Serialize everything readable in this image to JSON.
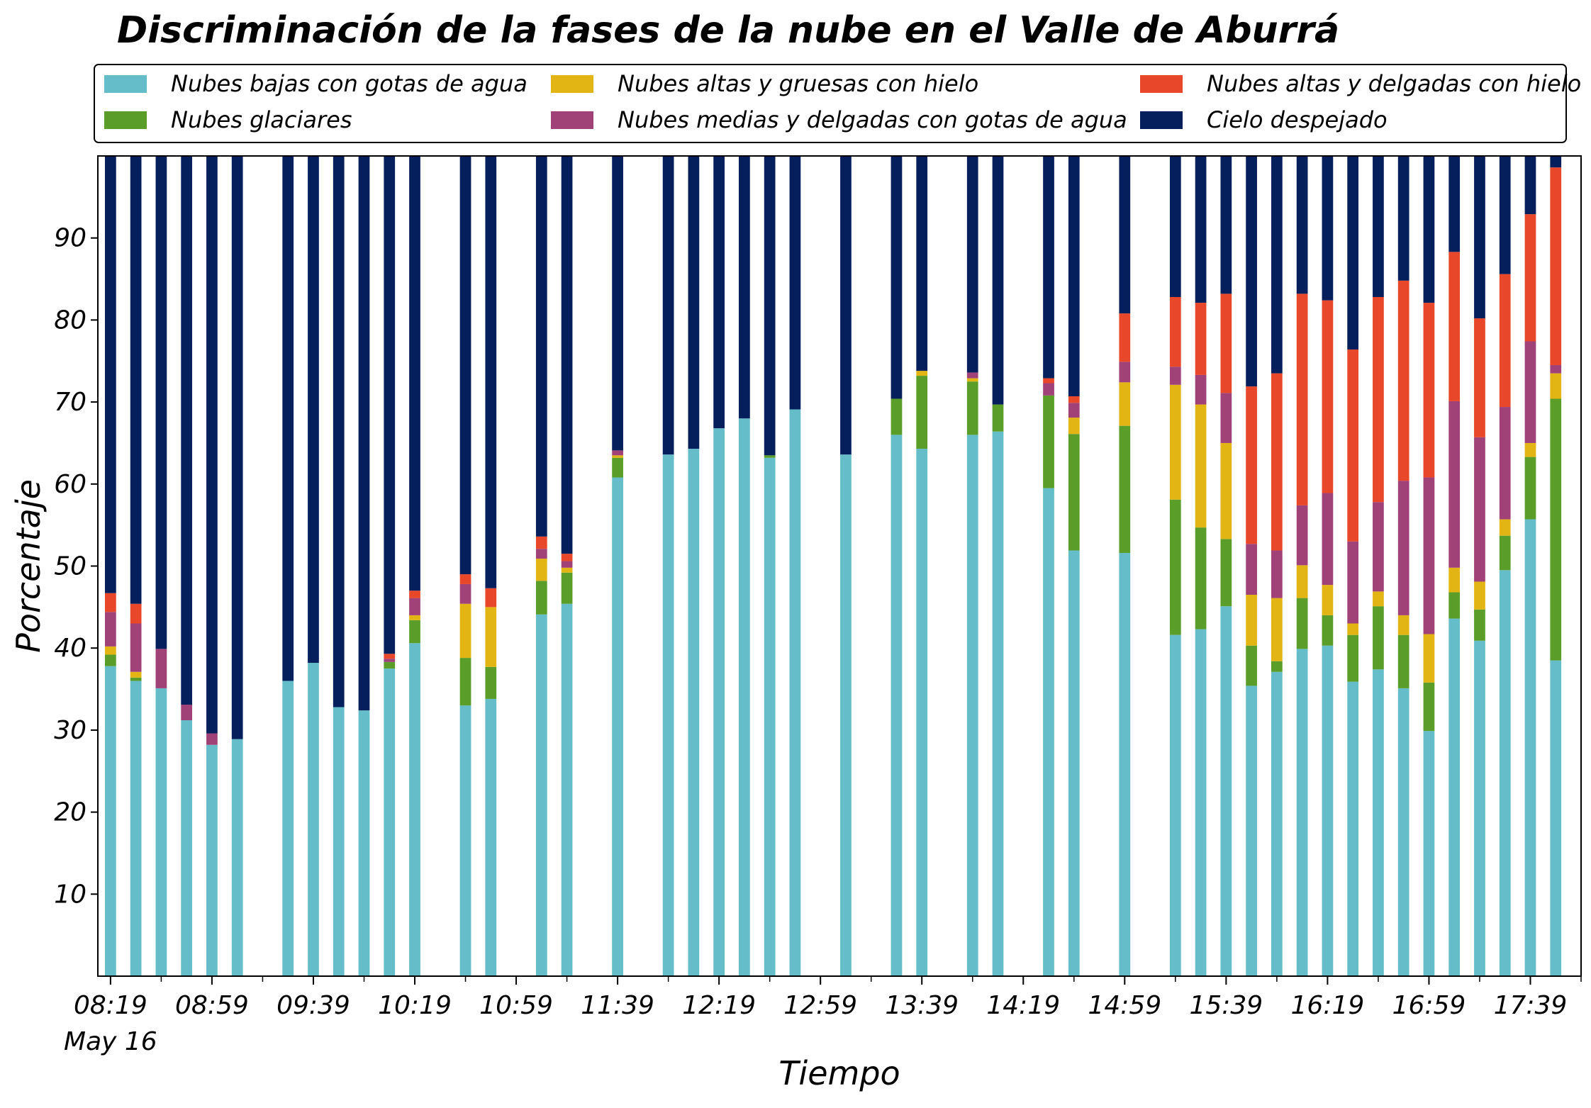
{
  "chart_data": {
    "type": "bar",
    "stacked": true,
    "title": "Discriminación de la fases de la nube en el Valle de Aburrá",
    "xlabel": "Tiempo",
    "ylabel": "Porcentaje",
    "ylim": [
      0,
      100
    ],
    "yticks": [
      10,
      20,
      30,
      40,
      50,
      60,
      70,
      80,
      90
    ],
    "xlim": [
      0,
      117
    ],
    "x_unit_minutes": 5,
    "x_start_time": "08:19",
    "xtick_labels": [
      "08:19",
      "08:59",
      "09:39",
      "10:19",
      "10:59",
      "11:39",
      "12:19",
      "12:59",
      "13:39",
      "14:19",
      "14:59",
      "15:39",
      "16:19",
      "16:59",
      "17:39"
    ],
    "xtick_sublabel": "May 16",
    "legend_position": "top",
    "grid": false,
    "x": [
      "08:19",
      "08:29",
      "08:39",
      "08:49",
      "08:59",
      "09:09",
      "09:29",
      "09:39",
      "09:49",
      "09:59",
      "10:09",
      "10:19",
      "10:39",
      "10:49",
      "11:09",
      "11:19",
      "11:39",
      "11:59",
      "12:09",
      "12:19",
      "12:29",
      "12:39",
      "12:49",
      "13:09",
      "13:29",
      "13:39",
      "13:59",
      "14:09",
      "14:29",
      "14:39",
      "14:59",
      "15:19",
      "15:29",
      "15:39",
      "15:49",
      "15:59",
      "16:09",
      "16:19",
      "16:29",
      "16:39",
      "16:49",
      "16:59",
      "17:09",
      "17:19",
      "17:29",
      "17:39",
      "17:49"
    ],
    "series": [
      {
        "name": "Nubes bajas con gotas de agua",
        "color": "#64BDC9",
        "values": [
          37.8,
          36,
          35.1,
          31.2,
          28.2,
          28.9,
          36,
          38.2,
          32.8,
          32.4,
          37.5,
          40.6,
          33,
          33.8,
          44.1,
          45.4,
          60.8,
          63.6,
          64.3,
          66.8,
          68,
          63.2,
          69.1,
          63.6,
          66,
          64.3,
          66,
          66.4,
          59.5,
          51.9,
          51.6,
          41.6,
          42.3,
          45.1,
          35.4,
          37.1,
          39.9,
          40.3,
          35.9,
          37.4,
          35.1,
          29.9,
          43.6,
          40.9,
          49.5,
          55.7,
          38.5
        ]
      },
      {
        "name": "Nubes glaciares",
        "color": "#5A9E29",
        "values": [
          1.4,
          0.4,
          0,
          0,
          0,
          0,
          0,
          0,
          0,
          0,
          0.8,
          2.8,
          5.8,
          3.9,
          4.1,
          3.8,
          2.4,
          0,
          0,
          0,
          0,
          0.3,
          0,
          0,
          4.4,
          8.9,
          6.5,
          3.3,
          11.3,
          14.2,
          15.5,
          16.5,
          12.4,
          8.2,
          4.9,
          1.3,
          6.2,
          3.7,
          5.7,
          7.7,
          6.5,
          5.9,
          3.2,
          3.8,
          4.2,
          7.6,
          31.9
        ]
      },
      {
        "name": "Nubes altas y gruesas con hielo",
        "color": "#E3B514",
        "values": [
          1,
          0.7,
          0,
          0,
          0,
          0,
          0,
          0,
          0,
          0,
          0,
          0.6,
          6.6,
          7.3,
          2.7,
          0.6,
          0.3,
          0,
          0,
          0,
          0,
          0,
          0,
          0,
          0,
          0.6,
          0.4,
          0,
          0,
          2,
          5.3,
          14,
          15,
          11.7,
          6.2,
          7.7,
          4,
          3.7,
          1.4,
          1.8,
          2.4,
          5.9,
          3,
          3.4,
          2,
          1.7,
          3.1
        ]
      },
      {
        "name": "Nubes medias y delgadas con gotas de agua",
        "color": "#A04278",
        "values": [
          4.2,
          5.9,
          4.8,
          1.9,
          1.4,
          0,
          0,
          0,
          0,
          0,
          0.4,
          2.1,
          2.4,
          0,
          1.2,
          0.8,
          0.6,
          0,
          0,
          0,
          0,
          0,
          0,
          0,
          0,
          0,
          0.7,
          0,
          1.5,
          1.8,
          2.5,
          2.2,
          3.6,
          6.1,
          6.2,
          5.8,
          7.3,
          11.2,
          10,
          10.9,
          16.4,
          19.1,
          20.3,
          17.6,
          13.7,
          12.4,
          1
        ]
      },
      {
        "name": "Nubes altas y delgadas con hielo",
        "color": "#E9472A",
        "values": [
          2.3,
          2.4,
          0,
          0,
          0,
          0,
          0,
          0,
          0,
          0,
          0.6,
          0.9,
          1.2,
          2.3,
          1.5,
          0.9,
          0,
          0,
          0,
          0,
          0,
          0,
          0,
          0,
          0,
          0,
          0,
          0,
          0.6,
          0.8,
          5.9,
          8.5,
          8.8,
          12.1,
          19.2,
          21.6,
          25.8,
          23.5,
          23.4,
          25,
          24.4,
          21.3,
          18.2,
          14.5,
          16.2,
          15.5,
          24.1
        ]
      },
      {
        "name": "Cielo despejado",
        "color": "#051F5C",
        "values": [
          53.3,
          54.6,
          60.1,
          66.9,
          70.4,
          71.1,
          64,
          61.8,
          67.2,
          67.6,
          60.7,
          53,
          51,
          52.7,
          46.4,
          48.5,
          35.9,
          36.4,
          35.7,
          33.2,
          32,
          36.5,
          30.9,
          36.4,
          29.6,
          26.2,
          26.4,
          30.3,
          27.1,
          29.3,
          19.2,
          17.2,
          17.9,
          16.8,
          28.1,
          26.5,
          16.8,
          17.6,
          23.6,
          17.2,
          15.2,
          17.9,
          11.7,
          19.8,
          14.4,
          7.1,
          1.4
        ]
      }
    ]
  }
}
